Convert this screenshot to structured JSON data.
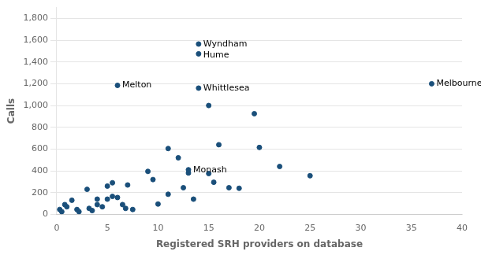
{
  "chart_data": {
    "type": "scatter",
    "x_label": "Registered SRH providers on database",
    "y_label": "Calls",
    "x": [
      0.3,
      0.5,
      0.8,
      1.0,
      1.5,
      2.0,
      2.2,
      3.0,
      3.2,
      3.5,
      4.0,
      4.0,
      4.5,
      5.0,
      5.0,
      5.5,
      5.5,
      6.0,
      6.0,
      6.5,
      6.8,
      7.0,
      7.5,
      9.0,
      9.5,
      10.0,
      11.0,
      11.0,
      12.0,
      12.5,
      13.0,
      13.0,
      13.5,
      14.0,
      14.0,
      14.0,
      15.0,
      15.0,
      15.5,
      16.0,
      17.0,
      18.0,
      19.5,
      20.0,
      22.0,
      25.0,
      37.0
    ],
    "values": [
      45,
      25,
      90,
      70,
      130,
      45,
      25,
      230,
      55,
      35,
      140,
      90,
      70,
      260,
      140,
      290,
      165,
      1185,
      155,
      90,
      55,
      270,
      45,
      395,
      320,
      95,
      605,
      185,
      520,
      245,
      380,
      410,
      140,
      1565,
      1475,
      1160,
      1000,
      375,
      295,
      640,
      245,
      240,
      925,
      615,
      440,
      355,
      1200
    ],
    "point_labels": [
      null,
      null,
      null,
      null,
      null,
      null,
      null,
      null,
      null,
      null,
      null,
      null,
      null,
      null,
      null,
      null,
      null,
      "Melton",
      null,
      null,
      null,
      null,
      null,
      null,
      null,
      null,
      null,
      null,
      null,
      null,
      null,
      "Monash",
      null,
      "Wyndham",
      "Hume",
      "Whittlesea",
      null,
      null,
      null,
      null,
      null,
      null,
      null,
      null,
      null,
      null,
      "Melbourne"
    ],
    "color": "#1a4f7a",
    "xlim": [
      0,
      40
    ],
    "ylim": [
      0,
      1900
    ],
    "xticks": [
      0,
      5,
      10,
      15,
      20,
      25,
      30,
      35,
      40
    ],
    "yticks": [
      0,
      200,
      400,
      600,
      800,
      {
        "value": 1000,
        "label": "1,000"
      },
      {
        "value": 1200,
        "label": "1,200"
      },
      {
        "value": 1400,
        "label": "1,400"
      },
      {
        "value": 1600,
        "label": "1,600"
      },
      {
        "value": 1800,
        "label": "1,800"
      }
    ],
    "grid": "y"
  }
}
